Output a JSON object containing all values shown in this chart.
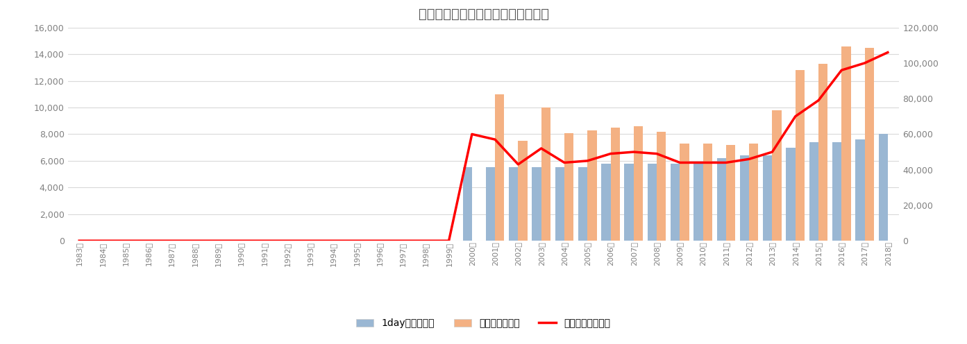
{
  "title": "ユニバーサル・スタジオ・ジャパン",
  "years": [
    "1983年",
    "1984年",
    "1985年",
    "1986年",
    "1987年",
    "1988年",
    "1989年",
    "1990年",
    "1991年",
    "1992年",
    "1993年",
    "1994年",
    "1995年",
    "1996年",
    "1997年",
    "1998年",
    "1999年",
    "2000年",
    "2001年",
    "2002年",
    "2003年",
    "2004年",
    "2005年",
    "2006年",
    "2007年",
    "2008年",
    "2009年",
    "2010年",
    "2011年",
    "2012年",
    "2013年",
    "2014年",
    "2015年",
    "2016年",
    "2017年",
    "2018年"
  ],
  "pass_price": [
    null,
    null,
    null,
    null,
    null,
    null,
    null,
    null,
    null,
    null,
    null,
    null,
    null,
    null,
    null,
    null,
    null,
    5500,
    5500,
    5500,
    5500,
    5500,
    5500,
    5800,
    5800,
    5800,
    5800,
    5800,
    6200,
    6400,
    6400,
    6980,
    7400,
    7400,
    7600,
    8000
  ],
  "visitors": [
    null,
    null,
    null,
    null,
    null,
    null,
    null,
    null,
    null,
    null,
    null,
    null,
    null,
    null,
    null,
    null,
    null,
    null,
    11000,
    7500,
    10000,
    8100,
    8300,
    8500,
    8600,
    8200,
    7300,
    7300,
    7200,
    7300,
    9800,
    12800,
    13300,
    14600,
    14500,
    null
  ],
  "sales": [
    0,
    0,
    0,
    0,
    0,
    0,
    0,
    0,
    0,
    0,
    0,
    0,
    0,
    0,
    0,
    0,
    0,
    60000,
    57000,
    43000,
    52000,
    44000,
    45000,
    49000,
    50000,
    49000,
    44000,
    44000,
    44000,
    46000,
    50000,
    70000,
    79000,
    96000,
    100000,
    106000
  ],
  "bar_blue_color": "#9ab7d3",
  "bar_orange_color": "#f4b183",
  "line_color": "#ff0000",
  "background_color": "#ffffff",
  "grid_color": "#d9d9d9",
  "text_color": "#808080",
  "left_ylim": [
    0,
    16000
  ],
  "right_ylim": [
    0,
    120000
  ],
  "left_yticks": [
    0,
    2000,
    4000,
    6000,
    8000,
    10000,
    12000,
    14000,
    16000
  ],
  "right_yticks": [
    0,
    20000,
    40000,
    60000,
    80000,
    100000,
    120000
  ],
  "legend_pass": "1dayパスの価格",
  "legend_visitors": "来園者数（千）",
  "legend_sales": "売上金額（百万）"
}
